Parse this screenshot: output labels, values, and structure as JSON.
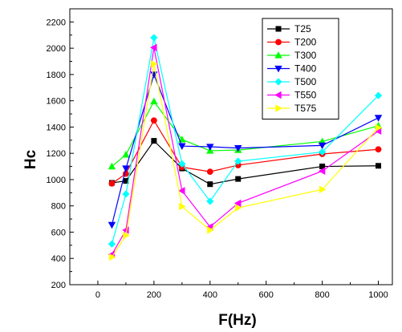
{
  "chart_data": {
    "type": "line",
    "title": "",
    "xlabel": "F(Hz)",
    "ylabel": "Hc",
    "xlim": [
      -100,
      1050
    ],
    "ylim": [
      200,
      2300
    ],
    "x_ticks": [
      0,
      200,
      400,
      600,
      800,
      1000
    ],
    "y_ticks": [
      200,
      400,
      600,
      800,
      1000,
      1200,
      1400,
      1600,
      1800,
      2000,
      2200
    ],
    "grid": false,
    "legend_position": "top-right",
    "x": [
      50,
      100,
      200,
      300,
      400,
      500,
      800,
      1000
    ],
    "series": [
      {
        "name": "T25",
        "color": "#000000",
        "marker": "square",
        "values": [
          975,
          990,
          1295,
          1085,
          965,
          1005,
          1100,
          1105
        ]
      },
      {
        "name": "T200",
        "color": "#ff0000",
        "marker": "circle",
        "values": [
          970,
          1045,
          1450,
          1095,
          1060,
          1110,
          1195,
          1230
        ]
      },
      {
        "name": "T300",
        "color": "#00ff00",
        "marker": "triangle-up",
        "values": [
          1100,
          1190,
          1595,
          1305,
          1220,
          1225,
          1290,
          1410
        ]
      },
      {
        "name": "T400",
        "color": "#0000ff",
        "marker": "triangle-down",
        "values": [
          655,
          1085,
          1800,
          1255,
          1250,
          1240,
          1260,
          1470
        ]
      },
      {
        "name": "T500",
        "color": "#00ffff",
        "marker": "diamond",
        "values": [
          510,
          890,
          2080,
          1120,
          835,
          1140,
          1210,
          1640
        ]
      },
      {
        "name": "T550",
        "color": "#ff00ff",
        "marker": "triangle-left",
        "values": [
          430,
          615,
          2005,
          915,
          640,
          820,
          1065,
          1370
        ]
      },
      {
        "name": "T575",
        "color": "#ffff00",
        "marker": "triangle-right",
        "values": [
          410,
          575,
          1880,
          795,
          615,
          785,
          925,
          1395
        ]
      }
    ]
  }
}
